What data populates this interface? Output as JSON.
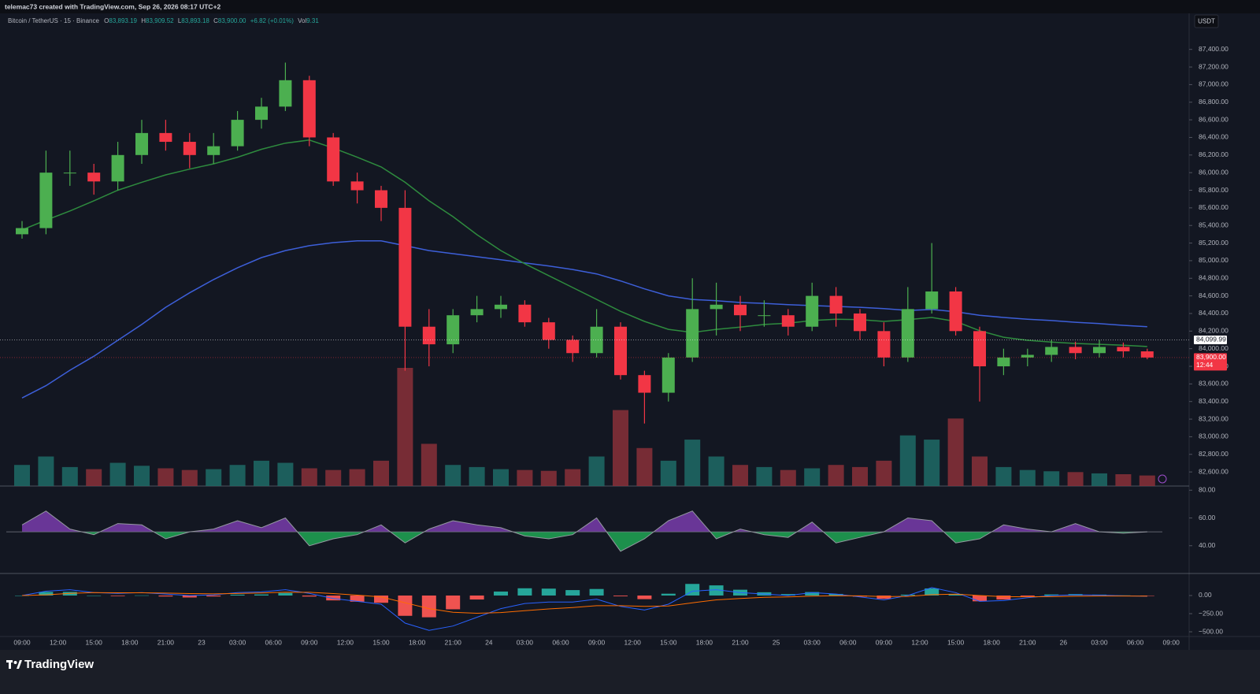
{
  "header": {
    "credit": "telemac73 created with TradingView.com, Sep 26, 2026 08:17 UTC+2"
  },
  "chart_data": {
    "type": "candlestick",
    "symbol": "Bitcoin / TetherUS · 15 · Binance",
    "legend": [
      {
        "key": "O",
        "value": "83,893.19"
      },
      {
        "key": "H",
        "value": "83,909.52"
      },
      {
        "key": "L",
        "value": "83,893.18"
      },
      {
        "key": "C",
        "value": "83,900.00"
      }
    ],
    "change": "+6.82 (+0.01%)",
    "volume_label": {
      "key": "Vol",
      "value": "9.31"
    },
    "currency": "USDT",
    "up_color": "#4caf50",
    "down_color": "#f23645",
    "open": [
      85300,
      85370,
      86000,
      86000,
      85900,
      86200,
      86450,
      86350,
      86200,
      86300,
      86600,
      86750,
      87050,
      86400,
      85900,
      85800,
      85600,
      84250,
      84050,
      84380,
      84450,
      84500,
      84300,
      84100,
      83950,
      84250,
      83700,
      83500,
      83900,
      84450,
      84500,
      84380,
      84380,
      84250,
      84600,
      84400,
      84200,
      83900,
      84450,
      84650,
      84200,
      83800,
      83900,
      83930,
      84020,
      83950,
      84020,
      83970
    ],
    "high": [
      85450,
      86250,
      86250,
      86100,
      86350,
      86600,
      86600,
      86450,
      86450,
      86700,
      86850,
      87250,
      87100,
      86450,
      86000,
      85850,
      85800,
      84450,
      84450,
      84600,
      84600,
      84550,
      84350,
      84150,
      84450,
      84300,
      83750,
      83950,
      84800,
      84750,
      84600,
      84550,
      84450,
      84750,
      84700,
      84450,
      84300,
      84700,
      85200,
      84700,
      84250,
      84000,
      84000,
      84100,
      84080,
      84100,
      84070,
      84000
    ],
    "low": [
      85250,
      85300,
      85850,
      85750,
      85800,
      86100,
      86250,
      86050,
      86100,
      86250,
      86500,
      86700,
      86300,
      85850,
      85650,
      85450,
      83750,
      83800,
      83950,
      84300,
      84350,
      84250,
      84000,
      83850,
      83900,
      83650,
      83150,
      83400,
      83850,
      84150,
      84200,
      84250,
      84150,
      84200,
      84250,
      84100,
      83800,
      83850,
      84400,
      84150,
      83400,
      83700,
      83800,
      83850,
      83880,
      83900,
      83900,
      83880
    ],
    "close": [
      85370,
      86000,
      86000,
      85900,
      86200,
      86450,
      86350,
      86200,
      86300,
      86600,
      86750,
      87050,
      86400,
      85900,
      85800,
      85600,
      84250,
      84050,
      84380,
      84450,
      84500,
      84300,
      84100,
      83950,
      84250,
      83700,
      83500,
      83900,
      84450,
      84500,
      84380,
      84380,
      84250,
      84600,
      84400,
      84200,
      83900,
      84450,
      84650,
      84200,
      83800,
      83900,
      83930,
      84020,
      83950,
      84020,
      83970,
      83900
    ],
    "volume": {
      "up_color": "#1f6b66",
      "down_color": "#8a3038",
      "values": [
        500,
        700,
        450,
        400,
        550,
        480,
        420,
        380,
        400,
        500,
        600,
        550,
        420,
        380,
        400,
        600,
        2800,
        1000,
        500,
        450,
        400,
        380,
        360,
        400,
        700,
        1800,
        900,
        600,
        1100,
        700,
        500,
        450,
        380,
        420,
        500,
        450,
        600,
        1200,
        1100,
        1600,
        700,
        450,
        380,
        350,
        330,
        300,
        280,
        250
      ]
    },
    "series": [
      {
        "color": "#3d5fd9",
        "values": [
          83440,
          83580,
          83755,
          83915,
          84095,
          84275,
          84470,
          84635,
          84785,
          84920,
          85035,
          85115,
          85170,
          85205,
          85225,
          85225,
          85170,
          85115,
          85080,
          85045,
          85010,
          84975,
          84940,
          84900,
          84850,
          84770,
          84680,
          84600,
          84560,
          84545,
          84525,
          84515,
          84500,
          84490,
          84480,
          84470,
          84455,
          84435,
          84445,
          84420,
          84380,
          84355,
          84335,
          84320,
          84300,
          84285,
          84265,
          84250
        ]
      },
      {
        "color": "#2e8b3e",
        "values": [
          85350,
          85460,
          85565,
          85680,
          85800,
          85890,
          85975,
          86040,
          86100,
          86175,
          86265,
          86335,
          86370,
          86280,
          86175,
          86065,
          85890,
          85680,
          85500,
          85295,
          85115,
          84965,
          84830,
          84695,
          84560,
          84425,
          84310,
          84220,
          84185,
          84220,
          84245,
          84275,
          84290,
          84320,
          84335,
          84330,
          84310,
          84330,
          84355,
          84310,
          84205,
          84130,
          84095,
          84075,
          84060,
          84050,
          84040,
          84025
        ]
      }
    ],
    "ylim": [
      82440,
      87800
    ],
    "yticks": [
      {
        "value": 82600,
        "label": "82,600.00"
      },
      {
        "value": 82800,
        "label": "82,800.00"
      },
      {
        "value": 83000,
        "label": "83,000.00"
      },
      {
        "value": 83200,
        "label": "83,200.00"
      },
      {
        "value": 83400,
        "label": "83,400.00"
      },
      {
        "value": 83600,
        "label": "83,600.00"
      },
      {
        "value": 83800,
        "label": "83,800.00"
      },
      {
        "value": 84000,
        "label": "84,000.00"
      },
      {
        "value": 84200,
        "label": "84,200.00"
      },
      {
        "value": 84400,
        "label": "84,400.00"
      },
      {
        "value": 84600,
        "label": "84,600.00"
      },
      {
        "value": 84800,
        "label": "84,800.00"
      },
      {
        "value": 85000,
        "label": "85,000.00"
      },
      {
        "value": 85200,
        "label": "85,200.00"
      },
      {
        "value": 85400,
        "label": "85,400.00"
      },
      {
        "value": 85600,
        "label": "85,600.00"
      },
      {
        "value": 85800,
        "label": "85,800.00"
      },
      {
        "value": 86000,
        "label": "86,000.00"
      },
      {
        "value": 86200,
        "label": "86,200.00"
      },
      {
        "value": 86400,
        "label": "86,400.00"
      },
      {
        "value": 86600,
        "label": "86,600.00"
      },
      {
        "value": 86800,
        "label": "86,800.00"
      },
      {
        "value": 87000,
        "label": "87,000.00"
      },
      {
        "value": 87200,
        "label": "87,200.00"
      },
      {
        "value": 87400,
        "label": "87,400.00"
      }
    ],
    "grid": false,
    "price_markers": [
      {
        "value": 84099.99,
        "label": "84,099.99",
        "color": "#ffffff",
        "text_color": "#131722"
      },
      {
        "value": 83900,
        "label": "83,900.00",
        "countdown": "12:44",
        "color": "#f23645",
        "text_color": "#ffffff"
      }
    ],
    "time_labels": [
      "09:00",
      "12:00",
      "15:00",
      "18:00",
      "21:00",
      "23",
      "03:00",
      "06:00",
      "09:00",
      "12:00",
      "15:00",
      "18:00",
      "21:00",
      "24",
      "03:00",
      "06:00",
      "09:00",
      "12:00",
      "15:00",
      "18:00",
      "21:00",
      "25",
      "03:00",
      "06:00",
      "09:00",
      "12:00",
      "15:00",
      "18:00",
      "21:00",
      "26",
      "03:00",
      "06:00",
      "09:00"
    ],
    "rsi": {
      "color": "#9598a1",
      "up_fill": "#8e44c9",
      "down_fill": "#22c55e",
      "values": [
        55,
        65,
        52,
        48,
        56,
        55,
        45,
        50,
        52,
        58,
        53,
        60,
        40,
        45,
        48,
        55,
        42,
        52,
        58,
        55,
        53,
        47,
        45,
        48,
        60,
        36,
        45,
        58,
        65,
        45,
        52,
        48,
        46,
        57,
        42,
        46,
        50,
        60,
        58,
        42,
        45,
        55,
        52,
        50,
        56,
        50,
        49,
        50
      ],
      "ylim": [
        20,
        83
      ],
      "yticks": [
        {
          "value": 80,
          "label": "80.00"
        },
        {
          "value": 60,
          "label": "60.00"
        },
        {
          "value": 40,
          "label": "40.00"
        }
      ]
    },
    "macd": {
      "hist_up": "#26a69a",
      "hist_down": "#ef5350",
      "macd_color": "#2962ff",
      "signal_color": "#ff6d00",
      "hist": [
        0,
        50,
        50,
        0,
        -8,
        2,
        -13,
        -27,
        -13,
        12,
        15,
        35,
        -14,
        -67,
        -85,
        -100,
        -280,
        -300,
        -190,
        -55,
        55,
        100,
        95,
        75,
        90,
        -10,
        -50,
        25,
        160,
        140,
        80,
        45,
        20,
        48,
        22,
        -15,
        -45,
        12,
        98,
        22,
        -80,
        -55,
        -12,
        15,
        20,
        12,
        2,
        -2
      ],
      "macd": [
        0,
        60,
        80,
        40,
        30,
        40,
        20,
        0,
        10,
        40,
        50,
        80,
        30,
        -40,
        -80,
        -120,
        -380,
        -480,
        -420,
        -300,
        -180,
        -110,
        -90,
        -90,
        -50,
        -150,
        -200,
        -120,
        60,
        80,
        40,
        20,
        0,
        40,
        20,
        -20,
        -60,
        0,
        110,
        40,
        -80,
        -70,
        -30,
        0,
        10,
        5,
        -5,
        -10
      ],
      "signal": [
        0,
        10,
        30,
        40,
        38,
        38,
        33,
        27,
        23,
        28,
        35,
        45,
        44,
        27,
        5,
        -20,
        -100,
        -180,
        -230,
        -245,
        -235,
        -210,
        -185,
        -165,
        -140,
        -140,
        -150,
        -145,
        -100,
        -60,
        -40,
        -25,
        -20,
        -8,
        -2,
        -5,
        -15,
        -12,
        12,
        18,
        0,
        -15,
        -18,
        -15,
        -10,
        -7,
        -7,
        -8
      ],
      "ylim": [
        -565,
        304
      ],
      "yticks": [
        {
          "value": 0,
          "label": "0.00"
        },
        {
          "value": -250,
          "label": "−250.00"
        },
        {
          "value": -500,
          "label": "−500.00"
        }
      ]
    }
  },
  "footer": {
    "brand": "TradingView"
  }
}
